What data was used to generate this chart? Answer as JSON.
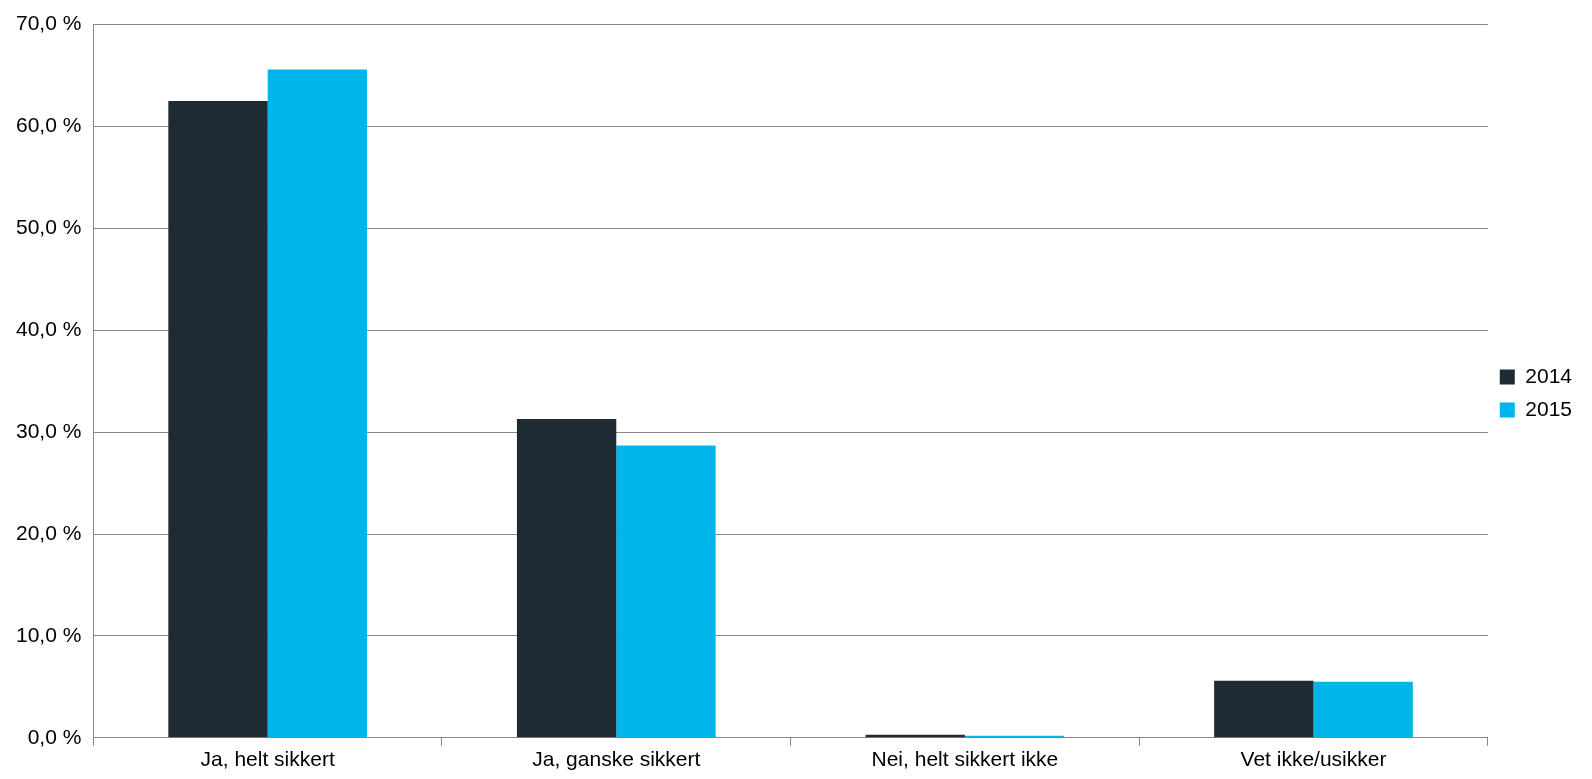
{
  "chart_data": {
    "type": "bar",
    "categories": [
      "Ja, helt sikkert",
      "Ja, ganske sikkert",
      "Nei, helt sikkert ikke",
      "Vet ikke/usikker"
    ],
    "series": [
      {
        "name": "2014",
        "color": "#1f2b33",
        "values": [
          62.5,
          31.3,
          0.3,
          5.6
        ]
      },
      {
        "name": "2015",
        "color": "#00b5e9",
        "values": [
          65.6,
          28.7,
          0.2,
          5.5
        ]
      }
    ],
    "ylim": [
      0,
      70
    ],
    "yticks": [
      {
        "value": 0,
        "label": "0,0 %"
      },
      {
        "value": 10,
        "label": "10,0 %"
      },
      {
        "value": 20,
        "label": "20,0 %"
      },
      {
        "value": 30,
        "label": "30,0 %"
      },
      {
        "value": 40,
        "label": "40,0 %"
      },
      {
        "value": 50,
        "label": "50,0 %"
      },
      {
        "value": 60,
        "label": "60,0 %"
      },
      {
        "value": 70,
        "label": "70,0 %"
      }
    ],
    "grid": "y",
    "legend": "right"
  }
}
